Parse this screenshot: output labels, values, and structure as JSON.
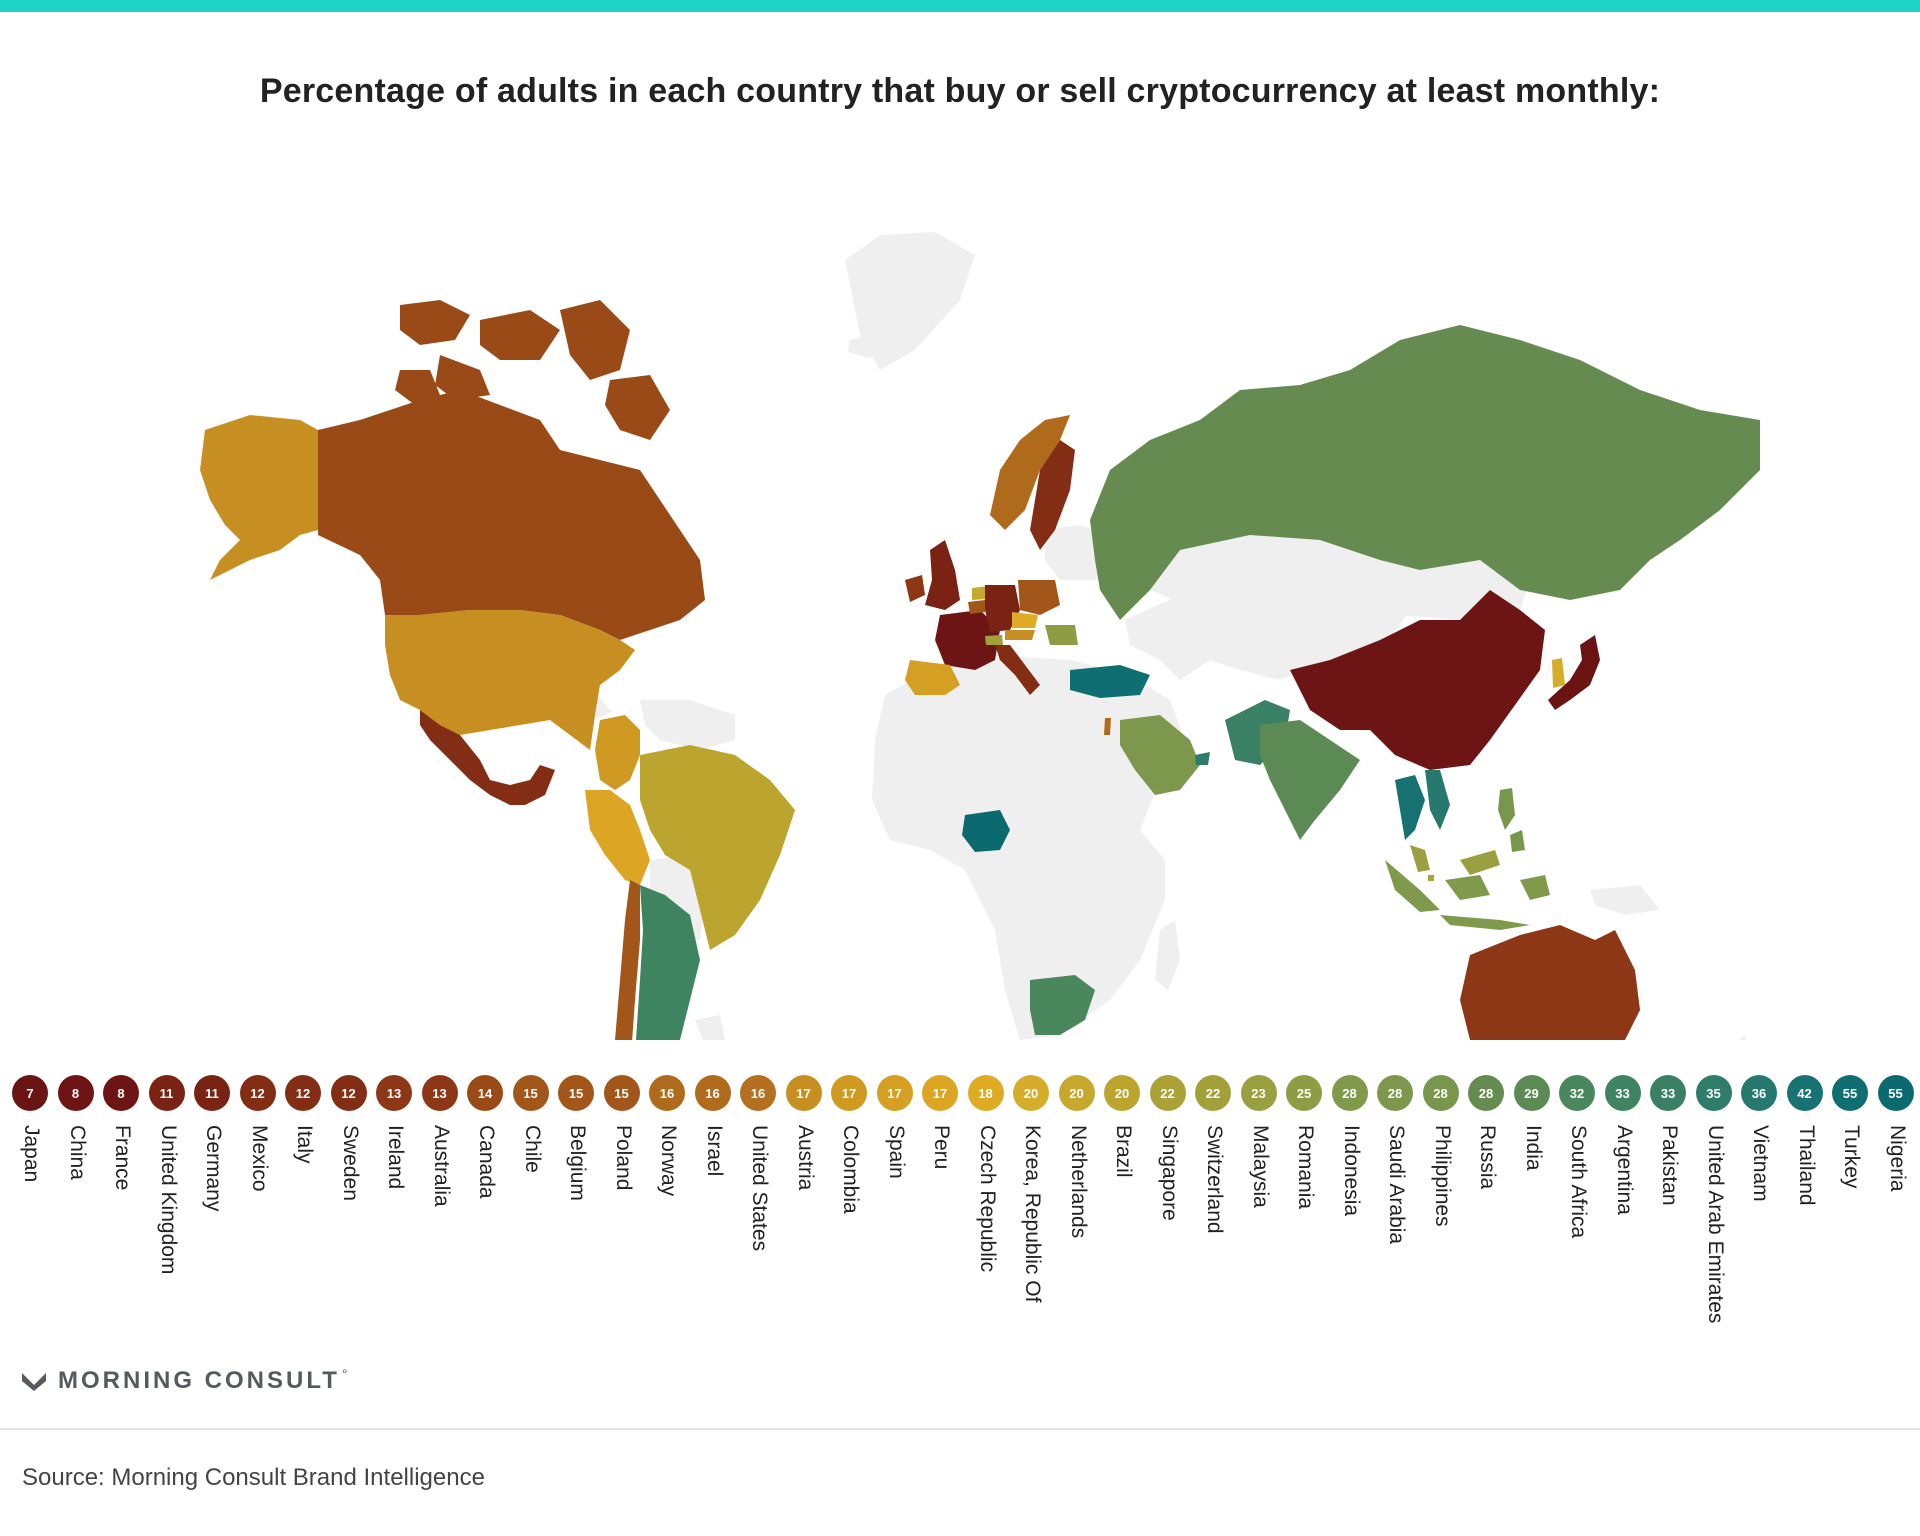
{
  "header": {
    "title": "Percentage of adults in each country that buy or sell cryptocurrency at least monthly:"
  },
  "colors": {
    "accent_bar": "#1fd3c6",
    "no_data": "#efefef",
    "scale": [
      "#6b1414",
      "#7a2214",
      "#8e3716",
      "#9c4c17",
      "#a8601a",
      "#b87a1e",
      "#c89020",
      "#d9a424",
      "#e3b22a",
      "#c9a728",
      "#b3a233",
      "#9aa040",
      "#7f9a4b",
      "#6a8f50",
      "#4f8a5b",
      "#3a8064",
      "#2b7a6e",
      "#1d7676",
      "#0f6f73",
      "#0c6a70"
    ]
  },
  "chart_data": {
    "type": "choropleth",
    "title": "Percentage of adults in each country that buy or sell cryptocurrency at least monthly:",
    "unit": "%",
    "countries": [
      {
        "name": "Japan",
        "value": 7,
        "color": "#6b1414"
      },
      {
        "name": "China",
        "value": 8,
        "color": "#6d1515"
      },
      {
        "name": "France",
        "value": 8,
        "color": "#6d1515"
      },
      {
        "name": "United Kingdom",
        "value": 11,
        "color": "#7a2214"
      },
      {
        "name": "Germany",
        "value": 11,
        "color": "#7a2214"
      },
      {
        "name": "Mexico",
        "value": 12,
        "color": "#842d15"
      },
      {
        "name": "Italy",
        "value": 12,
        "color": "#842d15"
      },
      {
        "name": "Sweden",
        "value": 12,
        "color": "#842d15"
      },
      {
        "name": "Ireland",
        "value": 13,
        "color": "#8e3716"
      },
      {
        "name": "Australia",
        "value": 13,
        "color": "#8e3716"
      },
      {
        "name": "Canada",
        "value": 14,
        "color": "#9a4a17"
      },
      {
        "name": "Chile",
        "value": 15,
        "color": "#a3561a"
      },
      {
        "name": "Belgium",
        "value": 15,
        "color": "#a3561a"
      },
      {
        "name": "Poland",
        "value": 15,
        "color": "#a3561a"
      },
      {
        "name": "Norway",
        "value": 16,
        "color": "#b06a1c"
      },
      {
        "name": "Israel",
        "value": 16,
        "color": "#b06a1c"
      },
      {
        "name": "United States",
        "value": 16,
        "color": "#b47020"
      },
      {
        "name": "Austria",
        "value": 17,
        "color": "#c78f21"
      },
      {
        "name": "Colombia",
        "value": 17,
        "color": "#cf9922"
      },
      {
        "name": "Spain",
        "value": 17,
        "color": "#d49f22"
      },
      {
        "name": "Peru",
        "value": 17,
        "color": "#dca624"
      },
      {
        "name": "Czech Republic",
        "value": 18,
        "color": "#dfab24"
      },
      {
        "name": "Korea, Republic Of",
        "value": 20,
        "color": "#d5ad2a"
      },
      {
        "name": "Netherlands",
        "value": 20,
        "color": "#c5a82c"
      },
      {
        "name": "Brazil",
        "value": 20,
        "color": "#bca52f"
      },
      {
        "name": "Singapore",
        "value": 22,
        "color": "#aaa236"
      },
      {
        "name": "Switzerland",
        "value": 22,
        "color": "#a3a039"
      },
      {
        "name": "Malaysia",
        "value": 23,
        "color": "#9a9f40"
      },
      {
        "name": "Romania",
        "value": 25,
        "color": "#8e9c44"
      },
      {
        "name": "Indonesia",
        "value": 28,
        "color": "#7f9a4b"
      },
      {
        "name": "Saudi Arabia",
        "value": 28,
        "color": "#7d984c"
      },
      {
        "name": "Philippines",
        "value": 28,
        "color": "#78974d"
      },
      {
        "name": "Russia",
        "value": 28,
        "color": "#658b50"
      },
      {
        "name": "India",
        "value": 29,
        "color": "#5c8a55"
      },
      {
        "name": "South Africa",
        "value": 32,
        "color": "#4a875c"
      },
      {
        "name": "Argentina",
        "value": 33,
        "color": "#3f8461"
      },
      {
        "name": "Pakistan",
        "value": 33,
        "color": "#3a8064"
      },
      {
        "name": "United Arab Emirates",
        "value": 35,
        "color": "#2f7c6b"
      },
      {
        "name": "Vietnam",
        "value": 36,
        "color": "#27796f"
      },
      {
        "name": "Thailand",
        "value": 42,
        "color": "#177271"
      },
      {
        "name": "Turkey",
        "value": 55,
        "color": "#0f6e72"
      },
      {
        "name": "Nigeria",
        "value": 55,
        "color": "#0a6a70"
      }
    ]
  },
  "logo": {
    "text": "MORNING CONSULT",
    "mark": "°"
  },
  "footer": {
    "source": "Source: Morning Consult Brand Intelligence"
  }
}
